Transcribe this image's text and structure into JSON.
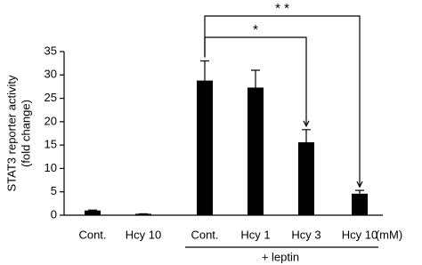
{
  "chart_data": {
    "type": "bar",
    "ylabel": [
      "STAT3 reporter activity",
      "(fold change)"
    ],
    "categories": [
      "Cont.",
      "Hcy 10",
      "Cont.",
      "Hcy 1",
      "Hcy 3",
      "Hcy 10"
    ],
    "unit_label": "(mM)",
    "group_label": "+ leptin",
    "series": [
      {
        "color": "#000000",
        "values": [
          1,
          0.3,
          28.8,
          27.3,
          15.6,
          4.6
        ],
        "errors": [
          0.1,
          0,
          4.2,
          3.7,
          2.7,
          0.7
        ]
      }
    ],
    "ylim": [
      0,
      35
    ],
    "yticks": [
      0,
      5,
      10,
      15,
      20,
      25,
      30,
      35
    ],
    "annotations": [
      "*",
      "* *"
    ]
  }
}
